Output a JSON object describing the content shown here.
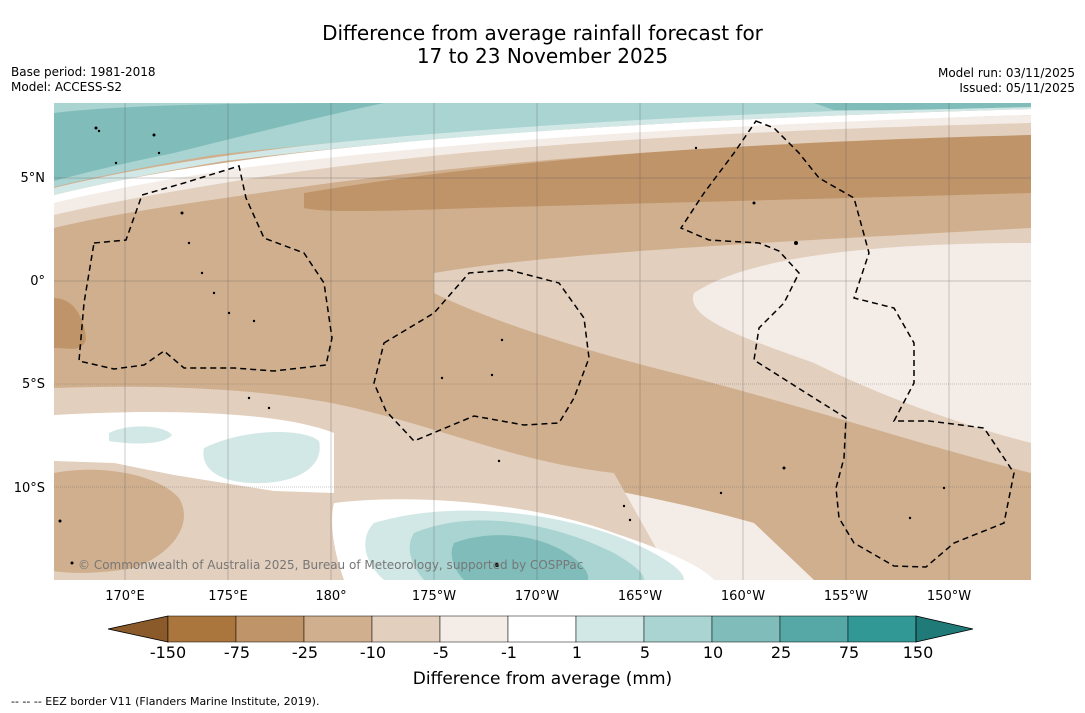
{
  "title": {
    "line1": "Difference from average rainfall forecast for",
    "line2": "17 to 23 November 2025"
  },
  "meta_left": {
    "base_period": "Base period: 1981-2018",
    "model": "Model: ACCESS-S2"
  },
  "meta_right": {
    "model_run": "Model run: 03/11/2025",
    "issued": "Issued: 05/11/2025"
  },
  "map": {
    "lat_ticks": [
      "5°N",
      "0°",
      "5°S",
      "10°S"
    ],
    "lon_ticks": [
      "170°E",
      "175°E",
      "180°",
      "175°W",
      "170°W",
      "165°W",
      "160°W",
      "155°W",
      "150°W"
    ],
    "copyright": "© Commonwealth of Australia 2025, Bureau of Meteorology, supported by COSPPac"
  },
  "colorbar": {
    "labels": [
      "-150",
      "-75",
      "-25",
      "-10",
      "-5",
      "-1",
      "1",
      "5",
      "10",
      "25",
      "75",
      "150"
    ],
    "colors": [
      "#8a5a2b",
      "#ab763e",
      "#c09469",
      "#d0af8e",
      "#e2cfbd",
      "#f4ece6",
      "#ffffff",
      "#d2e8e6",
      "#a9d4d1",
      "#7fbcba",
      "#55a8a5",
      "#329895",
      "#1f7a78"
    ],
    "title": "Difference from average (mm)"
  },
  "colors": {
    "strong_dry": "#c09469",
    "moderate_dry": "#d0af8e",
    "light_dry": "#e2cfbd",
    "very_light_dry": "#f4ece6",
    "neutral": "#ffffff",
    "light_wet": "#d2e8e6",
    "moderate_wet": "#a9d4d1",
    "wet": "#7fbcba"
  },
  "footnote": "--  --  -- EEZ border V11 (Flanders Marine Institute, 2019)."
}
